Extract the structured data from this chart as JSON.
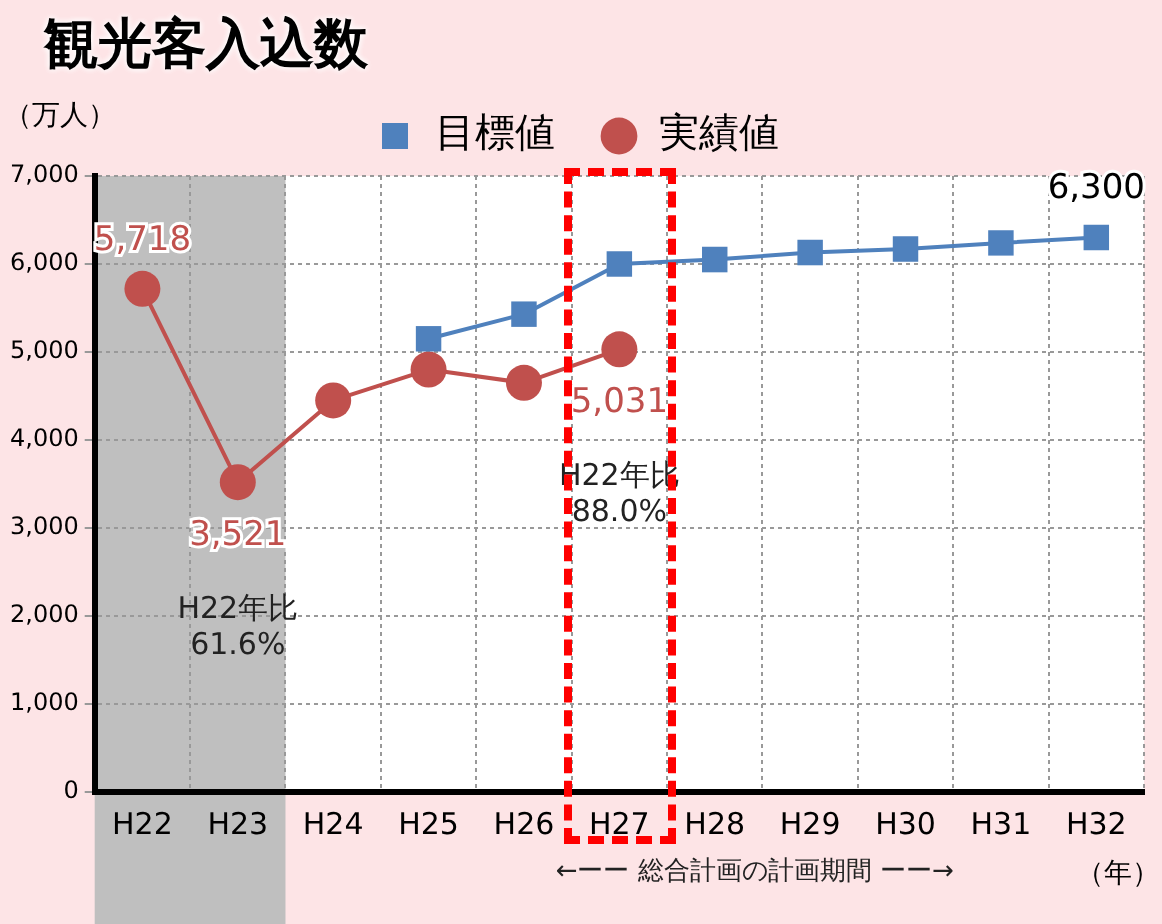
{
  "chart_data": {
    "type": "line",
    "title": "観光客入込数",
    "ylabel": "（万人）",
    "xlabel": "（年）",
    "categories": [
      "H22",
      "H23",
      "H24",
      "H25",
      "H26",
      "H27",
      "H28",
      "H29",
      "H30",
      "H31",
      "H32"
    ],
    "series": [
      {
        "name": "目標値",
        "color": "#4f81bd",
        "marker": "square",
        "values": [
          null,
          null,
          null,
          5150,
          5430,
          6000,
          6050,
          6130,
          6170,
          6240,
          6300
        ],
        "value_labels": [
          null,
          null,
          null,
          null,
          null,
          null,
          null,
          null,
          null,
          null,
          "6,300"
        ]
      },
      {
        "name": "実績値",
        "color": "#c0504d",
        "marker": "circle",
        "values": [
          5718,
          3521,
          4450,
          4800,
          4650,
          5031,
          null,
          null,
          null,
          null,
          null
        ],
        "value_labels": [
          "5,718",
          "3,521",
          null,
          null,
          null,
          "5,031",
          null,
          null,
          null,
          null,
          null
        ]
      }
    ],
    "ylim": [
      0,
      7000
    ],
    "yticks": [
      0,
      {
        "value": 1000,
        "label": "1,000"
      },
      {
        "value": 2000,
        "label": "2,000"
      },
      {
        "value": 3000,
        "label": "3,000"
      },
      {
        "value": 4000,
        "label": "4,000"
      },
      {
        "value": 5000,
        "label": "5,000"
      },
      {
        "value": 6000,
        "label": "6,000"
      },
      {
        "value": 7000,
        "label": "7,000"
      }
    ],
    "grid": true,
    "legend": "top",
    "line_style": "solid",
    "bands": [
      {
        "axis": "x",
        "from": "H22",
        "to": "H23",
        "color": "#bfbfbf"
      }
    ],
    "annotations": [
      "H22年比\n61.6%",
      "H22年比\n88.0%",
      "←ーー 総合計画の計画期間 ーー→"
    ]
  }
}
